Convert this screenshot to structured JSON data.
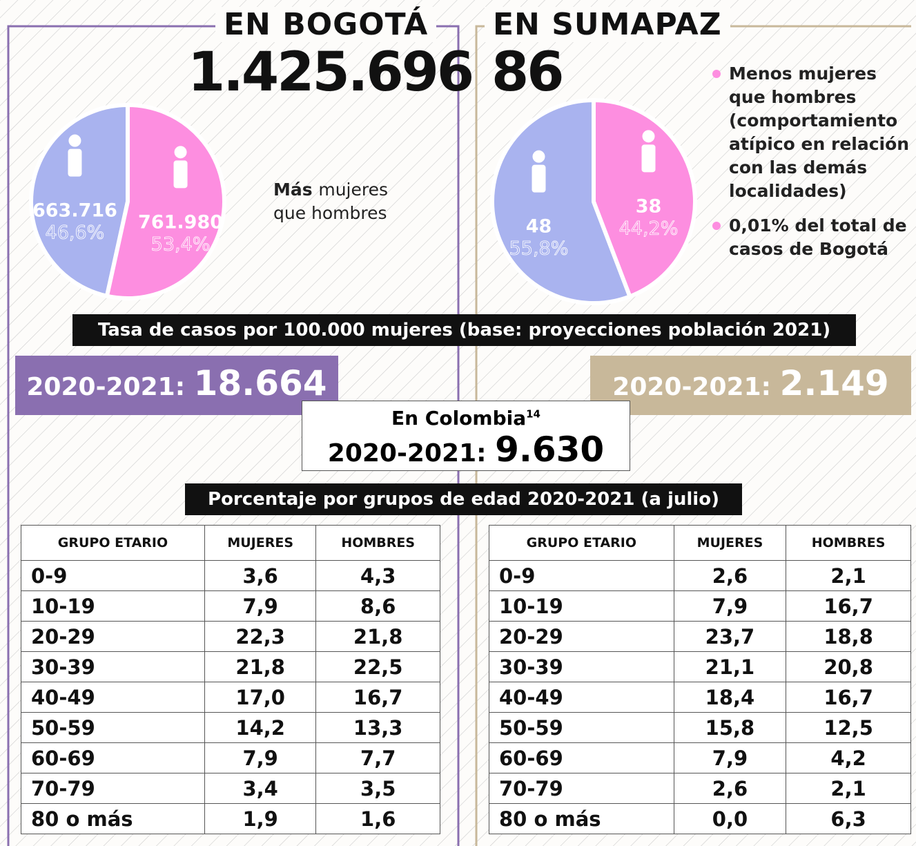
{
  "bogota": {
    "title": "EN BOGOTÁ",
    "total": "1.425.696",
    "pie": {
      "type": "pie",
      "values": [
        663716,
        761980
      ],
      "value_labels": [
        "663.716",
        "761.980"
      ],
      "percent_labels": [
        "46,6%",
        "53,4%"
      ],
      "colors": [
        "#a9b3ef",
        "#fd8ee0"
      ]
    },
    "note_bold": "Más",
    "note": "mujeres que hombres",
    "rate_label": "2020-2021:",
    "rate": "18.664",
    "table": {
      "header": [
        "GRUPO ETARIO",
        "MUJERES",
        "HOMBRES"
      ],
      "rows": [
        [
          "0-9",
          "3,6",
          "4,3"
        ],
        [
          "10-19",
          "7,9",
          "8,6"
        ],
        [
          "20-29",
          "22,3",
          "21,8"
        ],
        [
          "30-39",
          "21,8",
          "22,5"
        ],
        [
          "40-49",
          "17,0",
          "16,7"
        ],
        [
          "50-59",
          "14,2",
          "13,3"
        ],
        [
          "60-69",
          "7,9",
          "7,7"
        ],
        [
          "70-79",
          "3,4",
          "3,5"
        ],
        [
          "80 o más",
          "1,9",
          "1,6"
        ]
      ]
    }
  },
  "sumapaz": {
    "title": "EN SUMAPAZ",
    "total": "86",
    "pie": {
      "type": "pie",
      "values": [
        48,
        38
      ],
      "value_labels": [
        "48",
        "38"
      ],
      "percent_labels": [
        "55,8%",
        "44,2%"
      ],
      "colors": [
        "#a9b3ef",
        "#fd8ee0"
      ]
    },
    "bullets": [
      {
        "bold": "Menos",
        "text": "mujeres que hombres (comportamiento atípico en relación con las demás localidades)"
      },
      {
        "bold": "",
        "text": "0,01% del total de casos de Bogotá"
      }
    ],
    "rate_label": "2020-2021:",
    "rate": "2.149",
    "table": {
      "header": [
        "GRUPO ETARIO",
        "MUJERES",
        "HOMBRES"
      ],
      "rows": [
        [
          "0-9",
          "2,6",
          "2,1"
        ],
        [
          "10-19",
          "7,9",
          "16,7"
        ],
        [
          "20-29",
          "23,7",
          "18,8"
        ],
        [
          "30-39",
          "21,1",
          "20,8"
        ],
        [
          "40-49",
          "18,4",
          "16,7"
        ],
        [
          "50-59",
          "15,8",
          "12,5"
        ],
        [
          "60-69",
          "7,9",
          "4,2"
        ],
        [
          "70-79",
          "2,6",
          "2,1"
        ],
        [
          "80 o más",
          "0,0",
          "6,3"
        ]
      ]
    }
  },
  "rate_title": "Tasa de casos por 100.000 mujeres (base: proyecciones población 2021)",
  "colombia": {
    "title": "En Colombia",
    "sup": "14",
    "rate_label": "2020-2021:",
    "rate": "9.630"
  },
  "age_title": "Porcentaje por grupos de edad 2020-2021 (a julio)"
}
